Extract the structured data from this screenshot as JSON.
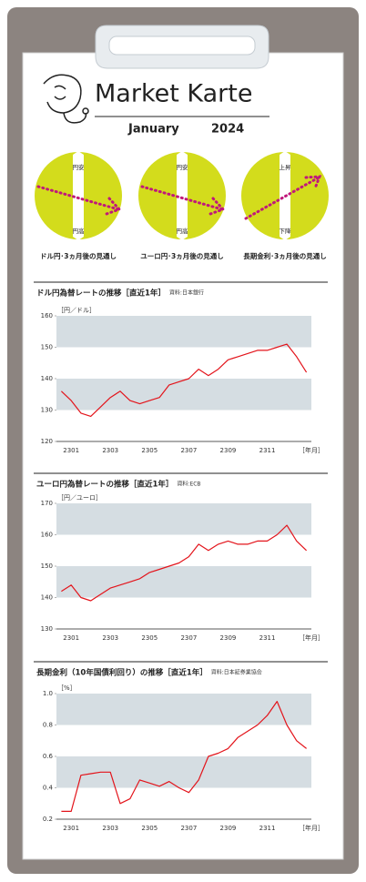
{
  "header": {
    "title": "Market Karte",
    "month": "January",
    "year": "2024"
  },
  "outlooks": [
    {
      "top": "円安",
      "bottom": "円高",
      "caption": "ドル円･3ヵ月後の見通し"
    },
    {
      "top": "円安",
      "bottom": "円高",
      "caption": "ユーロ円･3ヵ月後の見通し"
    },
    {
      "top": "上昇",
      "bottom": "下降",
      "caption": "長期金利･3ヵ月後の見通し"
    }
  ],
  "chart_data": [
    {
      "type": "line",
      "title": "ドル円為替レートの推移［直近1年］",
      "source": "資料:日本銀行",
      "y_unit": "［円／ドル］",
      "x_unit": "［年月］",
      "categories": [
        null,
        "2301",
        null,
        null,
        null,
        "2303",
        null,
        null,
        null,
        "2305",
        null,
        null,
        null,
        "2307",
        null,
        null,
        null,
        "2309",
        null,
        null,
        null,
        "2311",
        null,
        null,
        null,
        null
      ],
      "series": [
        {
          "color": "#e3141b",
          "values": [
            136,
            133,
            129,
            128,
            131,
            134,
            136,
            133,
            132,
            133,
            134,
            138,
            139,
            140,
            143,
            141,
            143,
            146,
            147,
            148,
            149,
            149,
            150,
            151,
            147,
            142
          ]
        }
      ],
      "ylim": [
        120,
        160
      ],
      "yticks": [
        120,
        130,
        140,
        150,
        160
      ]
    },
    {
      "type": "line",
      "title": "ユーロ円為替レートの推移［直近1年］",
      "source": "資料:ECB",
      "y_unit": "［円／ユーロ］",
      "x_unit": "［年月］",
      "categories": [
        null,
        "2301",
        null,
        null,
        null,
        "2303",
        null,
        null,
        null,
        "2305",
        null,
        null,
        null,
        "2307",
        null,
        null,
        null,
        "2309",
        null,
        null,
        null,
        "2311",
        null,
        null,
        null,
        null
      ],
      "series": [
        {
          "color": "#e3141b",
          "values": [
            142,
            144,
            140,
            139,
            141,
            143,
            144,
            145,
            146,
            148,
            149,
            150,
            151,
            153,
            157,
            155,
            157,
            158,
            157,
            157,
            158,
            158,
            160,
            163,
            158,
            155
          ]
        }
      ],
      "ylim": [
        130,
        170
      ],
      "yticks": [
        130,
        140,
        150,
        160,
        170
      ]
    },
    {
      "type": "line",
      "title": "長期金利（10年国債利回り）の推移［直近1年］",
      "source": "資料:日本証券業協会",
      "y_unit": "［%］",
      "x_unit": "［年月］",
      "categories": [
        null,
        "2301",
        null,
        null,
        null,
        "2303",
        null,
        null,
        null,
        "2305",
        null,
        null,
        null,
        "2307",
        null,
        null,
        null,
        "2309",
        null,
        null,
        null,
        "2311",
        null,
        null,
        null,
        null
      ],
      "series": [
        {
          "color": "#e3141b",
          "values": [
            0.25,
            0.25,
            0.48,
            0.49,
            0.5,
            0.5,
            0.3,
            0.33,
            0.45,
            0.43,
            0.41,
            0.44,
            0.4,
            0.37,
            0.45,
            0.6,
            0.62,
            0.65,
            0.72,
            0.76,
            0.8,
            0.86,
            0.95,
            0.8,
            0.7,
            0.65
          ]
        }
      ],
      "ylim": [
        0.2,
        1
      ],
      "yticks": [
        0.2,
        0.4,
        0.6,
        0.8,
        {
          "value": 1,
          "label": "1.0"
        }
      ]
    }
  ]
}
